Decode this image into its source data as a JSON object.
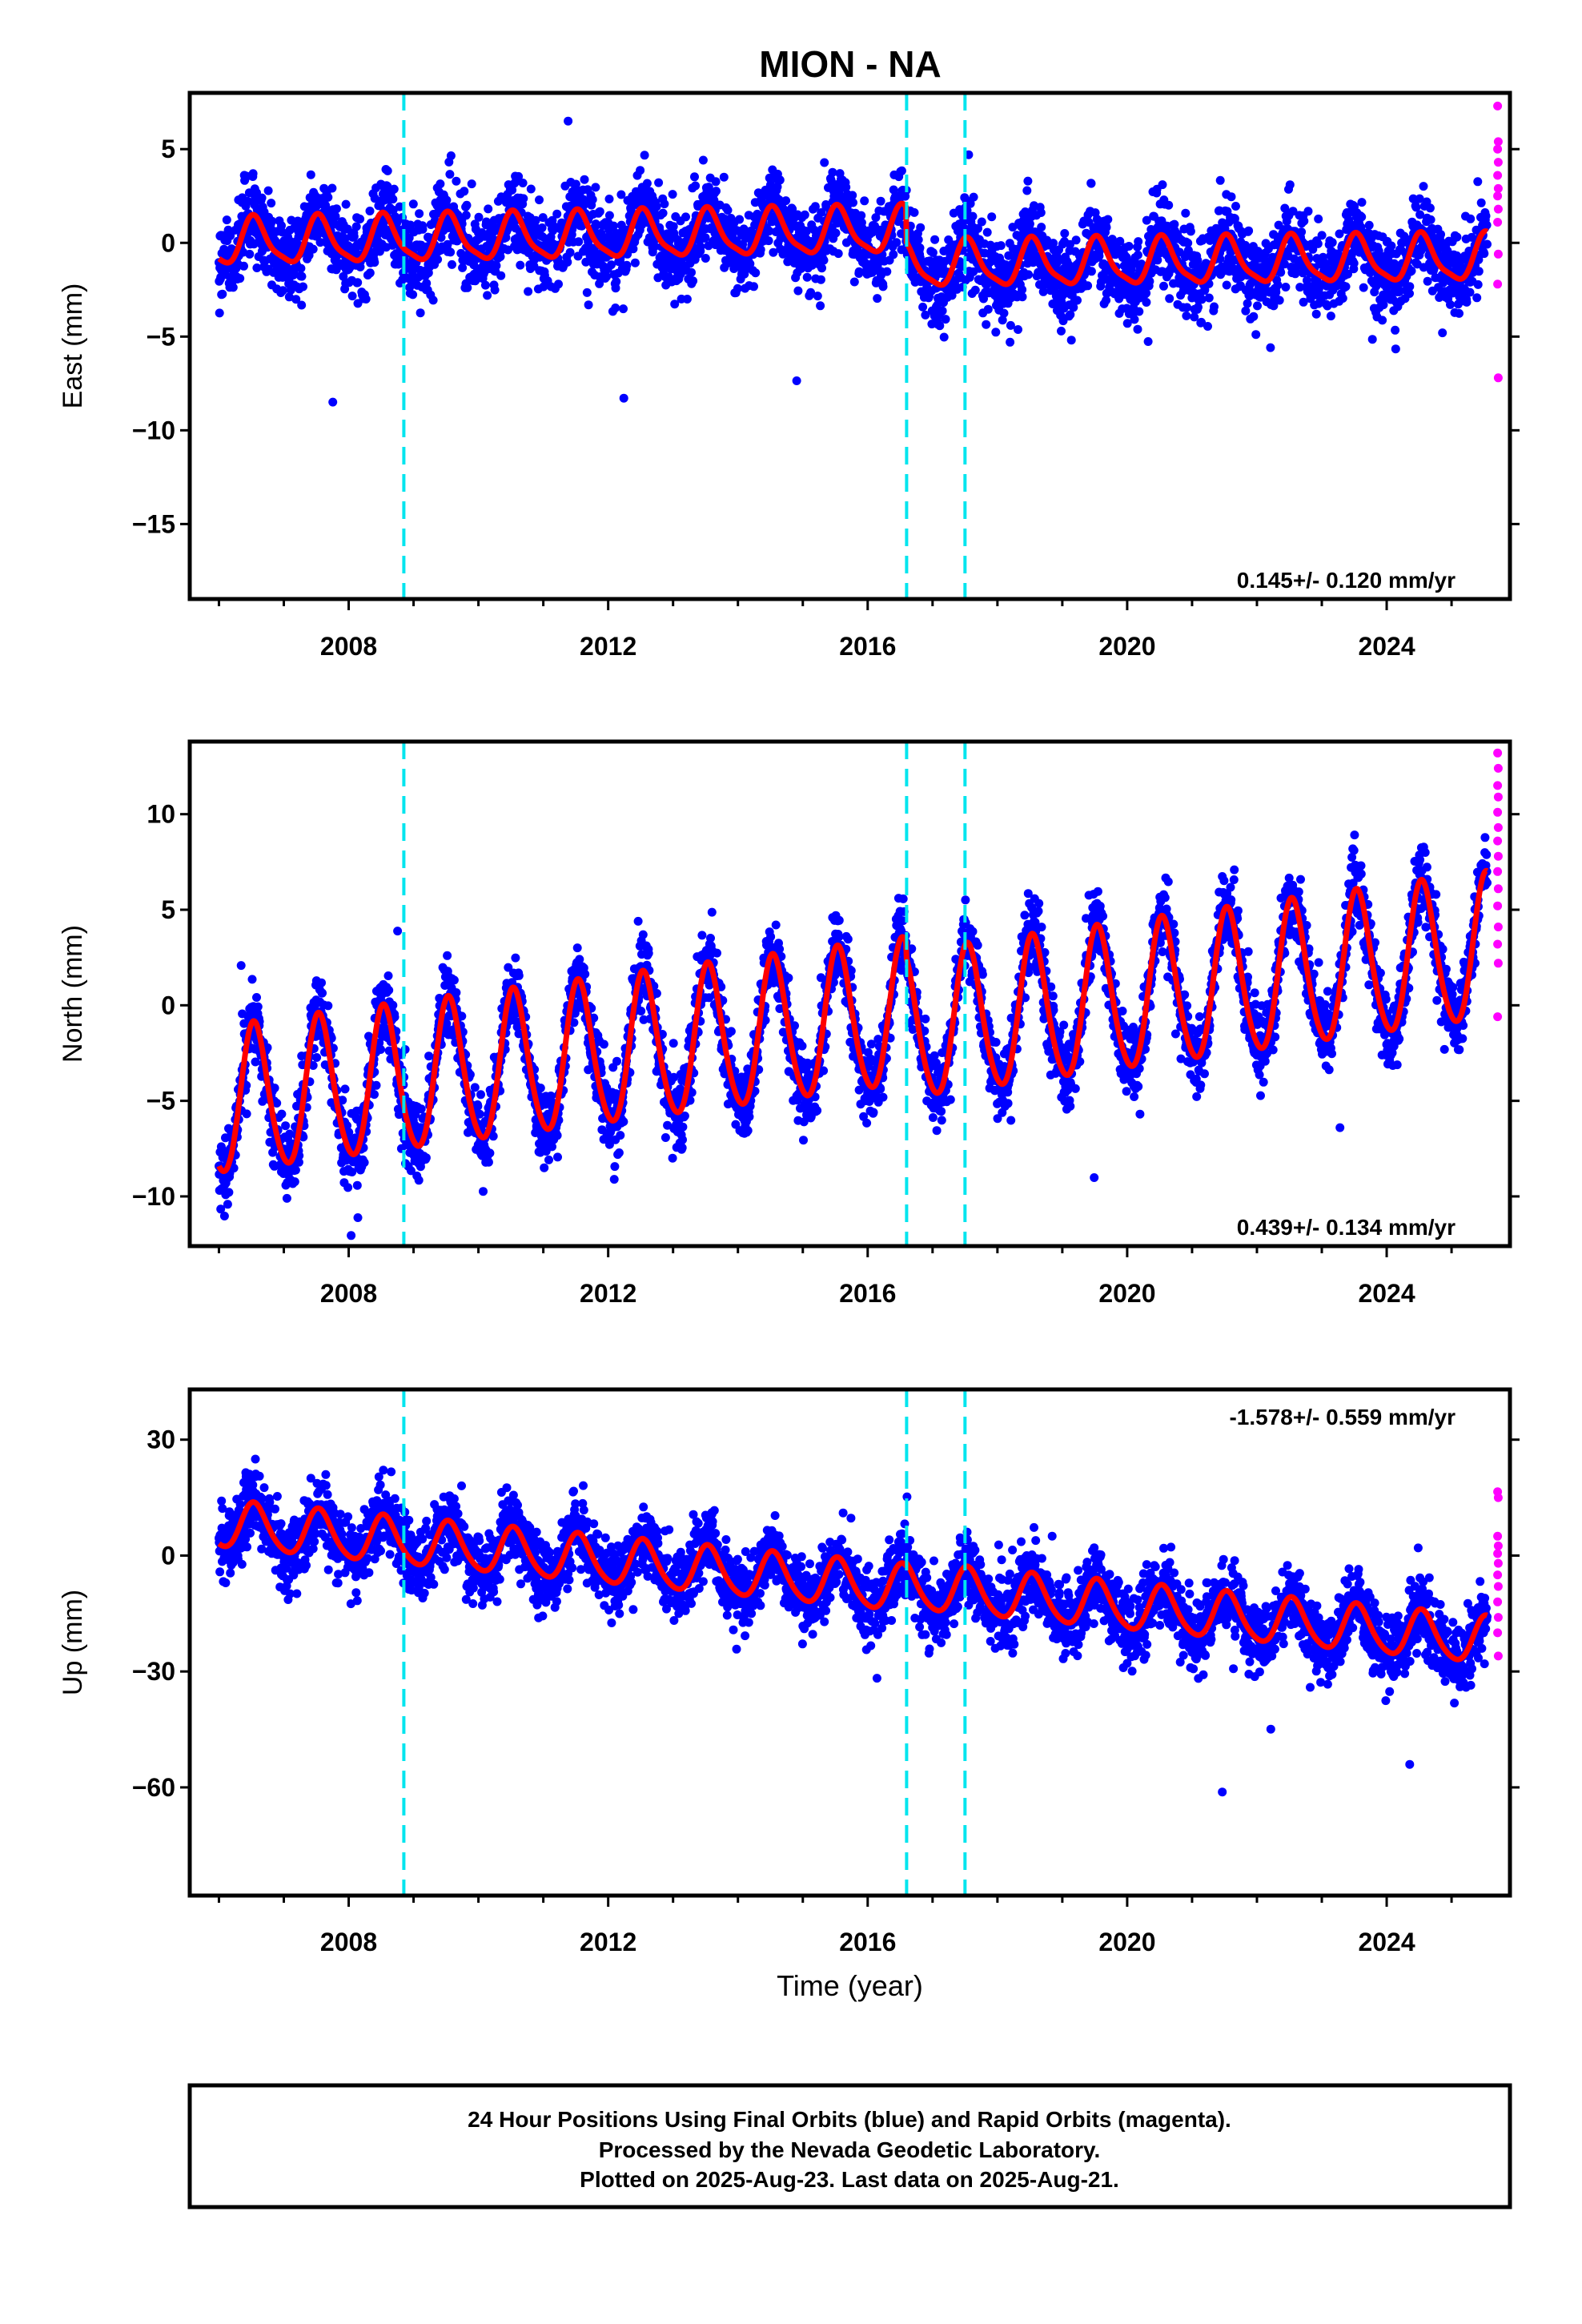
{
  "title": "MION - NA",
  "footer": {
    "lines": [
      "24 Hour Positions Using Final Orbits (blue) and Rapid Orbits (magenta).",
      "Processed by the Nevada Geodetic Laboratory.",
      "Plotted on 2025-Aug-23. Last data on 2025-Aug-21."
    ]
  },
  "colors": {
    "final_orbits": "#0000ff",
    "rapid_orbits": "#ff00ff",
    "model_fit": "#ff0000",
    "event_lines": "#00e5ee",
    "frame": "#000000"
  },
  "chart_data": [
    {
      "type": "scatter",
      "component": "East",
      "ylabel": "East (mm)",
      "xlabel": "",
      "xlim": [
        2005.55,
        2025.9
      ],
      "ylim": [
        -19,
        8
      ],
      "yticks": [
        5,
        0,
        -5,
        -10,
        -15
      ],
      "ytick_labels": [
        "5",
        "0",
        "−5",
        "−10",
        "−15"
      ],
      "xticks": [
        2008,
        2012,
        2016,
        2020,
        2024
      ],
      "rate_text": "0.145+/- 0.120 mm/yr",
      "rate_anchor": "bottom-right",
      "event_lines_x": [
        2008.85,
        2016.6,
        2017.5
      ],
      "fit": {
        "start": 2006.0,
        "end": 2025.55,
        "offset_before": 0.0,
        "trend_before": 0.06,
        "offset_after": -1.2,
        "trend_after": 0.04,
        "jump_year": 2016.6,
        "annual_amplitude": 1.2,
        "semiannual_amplitude": 0.3,
        "scatter_sd": 1.1
      },
      "rapid_points": [
        7.3,
        5.4,
        5.0,
        4.3,
        3.6,
        2.9,
        2.5,
        1.8,
        1.1,
        -0.6,
        -2.2,
        -7.2
      ]
    },
    {
      "type": "scatter",
      "component": "North",
      "ylabel": "North (mm)",
      "xlabel": "",
      "xlim": [
        2005.55,
        2025.9
      ],
      "ylim": [
        -12.6,
        13.8
      ],
      "yticks": [
        10,
        5,
        0,
        -5,
        -10
      ],
      "ytick_labels": [
        "10",
        "5",
        "0",
        "−5",
        "−10"
      ],
      "xticks": [
        2008,
        2012,
        2016,
        2020,
        2024
      ],
      "rate_text": "0.439+/- 0.134 mm/yr",
      "rate_anchor": "bottom-right",
      "event_lines_x": [
        2008.85,
        2016.6,
        2017.5
      ],
      "fit": {
        "start": 2006.0,
        "end": 2025.55,
        "offset_before": -5.2,
        "trend_before": 0.44,
        "offset_after": -1.3,
        "trend_after": 0.47,
        "jump_year": 2016.6,
        "annual_amplitude": 3.8,
        "semiannual_amplitude": 0.4,
        "scatter_sd": 1.0
      },
      "rapid_points": [
        13.2,
        12.4,
        11.5,
        10.9,
        10.1,
        9.3,
        8.6,
        7.8,
        7.0,
        6.1,
        5.2,
        4.1,
        3.2,
        2.2,
        -0.6
      ]
    },
    {
      "type": "scatter",
      "component": "Up",
      "ylabel": "Up (mm)",
      "xlabel": "Time (year)",
      "xlim": [
        2005.55,
        2025.9
      ],
      "ylim": [
        -88,
        43
      ],
      "yticks": [
        30,
        0,
        -30,
        -60
      ],
      "ytick_labels": [
        "30",
        "0",
        "−30",
        "−60"
      ],
      "xticks": [
        2008,
        2012,
        2016,
        2020,
        2024
      ],
      "rate_text": "-1.578+/- 0.559 mm/yr",
      "rate_anchor": "top-right",
      "event_lines_x": [
        2008.85,
        2016.6,
        2017.5
      ],
      "fit": {
        "start": 2006.0,
        "end": 2025.55,
        "offset_before": 8.0,
        "trend_before": -1.58,
        "offset_after": -8.0,
        "trend_after": -1.58,
        "jump_year": 2016.6,
        "annual_amplitude": 6.0,
        "semiannual_amplitude": 0.8,
        "scatter_sd": 4.5
      },
      "rapid_points": [
        16.5,
        15.0,
        5.0,
        2.5,
        0.5,
        -2.0,
        -5.0,
        -8.0,
        -12.0,
        -16.0,
        -20.0,
        -26.0
      ]
    }
  ]
}
